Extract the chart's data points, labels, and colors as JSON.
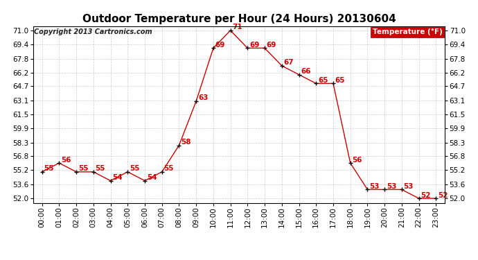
{
  "title": "Outdoor Temperature per Hour (24 Hours) 20130604",
  "copyright": "Copyright 2013 Cartronics.com",
  "legend_label": "Temperature (°F)",
  "hours": [
    0,
    1,
    2,
    3,
    4,
    5,
    6,
    7,
    8,
    9,
    10,
    11,
    12,
    13,
    14,
    15,
    16,
    17,
    18,
    19,
    20,
    21,
    22,
    23
  ],
  "temps": [
    55,
    56,
    55,
    55,
    54,
    55,
    54,
    55,
    58,
    63,
    69,
    71,
    69,
    69,
    67,
    66,
    65,
    65,
    56,
    53,
    53,
    53,
    52,
    52
  ],
  "x_labels": [
    "00:00",
    "01:00",
    "02:00",
    "03:00",
    "04:00",
    "05:00",
    "06:00",
    "07:00",
    "08:00",
    "09:00",
    "10:00",
    "11:00",
    "12:00",
    "13:00",
    "14:00",
    "15:00",
    "16:00",
    "17:00",
    "18:00",
    "19:00",
    "20:00",
    "21:00",
    "22:00",
    "23:00"
  ],
  "ylim": [
    51.5,
    71.5
  ],
  "yticks": [
    52.0,
    53.6,
    55.2,
    56.8,
    58.3,
    59.9,
    61.5,
    63.1,
    64.7,
    66.2,
    67.8,
    69.4,
    71.0
  ],
  "line_color": "#cc0000",
  "marker_color": "#000000",
  "label_color": "#cc0000",
  "bg_color": "#ffffff",
  "grid_color": "#cccccc",
  "title_color": "#000000",
  "legend_bg": "#cc0000",
  "legend_text_color": "#ffffff",
  "title_fontsize": 11,
  "label_fontsize": 7.5,
  "tick_fontsize": 7.5,
  "copyright_fontsize": 7
}
